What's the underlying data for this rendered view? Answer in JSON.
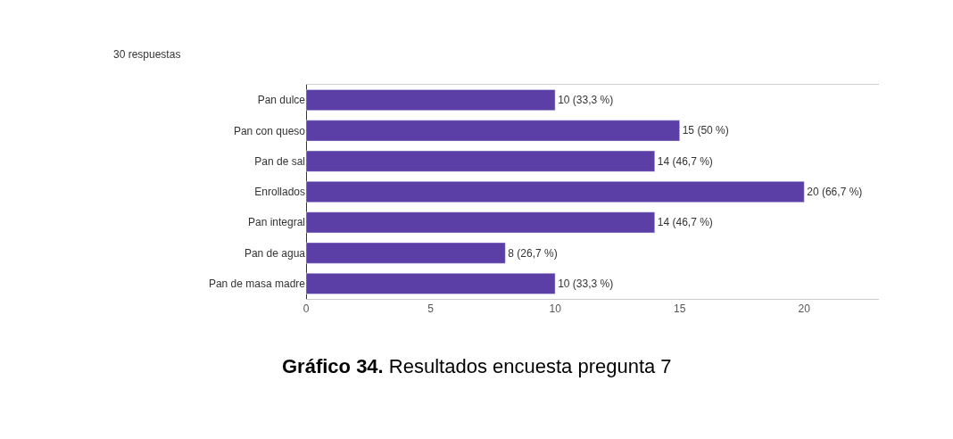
{
  "chart_data": {
    "type": "bar",
    "orientation": "horizontal",
    "subtitle": "30 respuestas",
    "categories": [
      "Pan dulce",
      "Pan con queso",
      "Pan de sal",
      "Enrollados",
      "Pan integral",
      "Pan de agua",
      "Pan de masa madre"
    ],
    "values": [
      10,
      15,
      14,
      20,
      14,
      8,
      10
    ],
    "value_labels": [
      "10 (33,3 %)",
      "15 (50 %)",
      "14 (46,7 %)",
      "20 (66,7 %)",
      "14 (46,7 %)",
      "8 (26,7 %)",
      "10 (33,3 %)"
    ],
    "color": "#5b3ea6",
    "xlim": [
      0,
      23
    ],
    "xticks": [
      0,
      5,
      10,
      15,
      20
    ],
    "grid": false,
    "legend": false,
    "annotations": [
      "Gráfico 34. Resultados encuesta pregunta 7"
    ]
  }
}
